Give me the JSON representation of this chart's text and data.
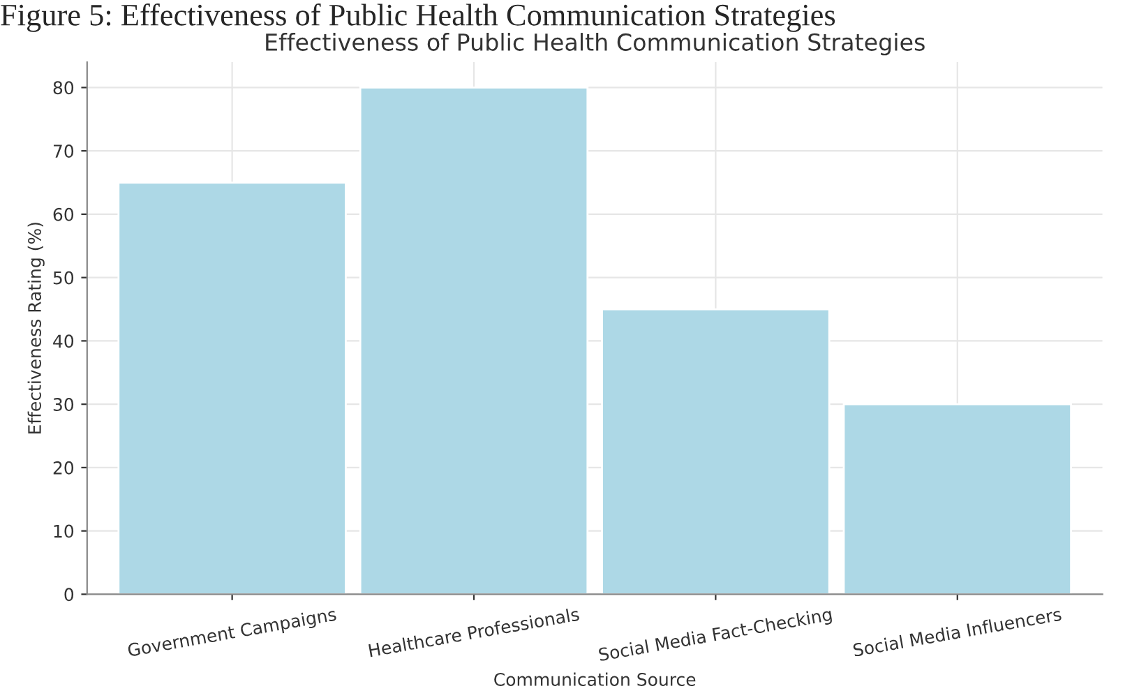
{
  "chart_data": {
    "type": "bar",
    "title": "Effectiveness of Public Health Communication Strategies",
    "xlabel": "Communication Source",
    "ylabel": "Effectiveness Rating (%)",
    "annotations": [
      "Figure 5: Effectiveness of Public Health Communication Strategies"
    ],
    "categories": [
      "Government Campaigns",
      "Healthcare Professionals",
      "Social Media Fact-Checking",
      "Social Media Influencers"
    ],
    "values": [
      65,
      80,
      45,
      30
    ],
    "color": "#add8e6",
    "ylim": [
      0,
      84
    ],
    "yticks": [
      0,
      10,
      20,
      30,
      40,
      50,
      60,
      70,
      80
    ],
    "grid": true
  }
}
